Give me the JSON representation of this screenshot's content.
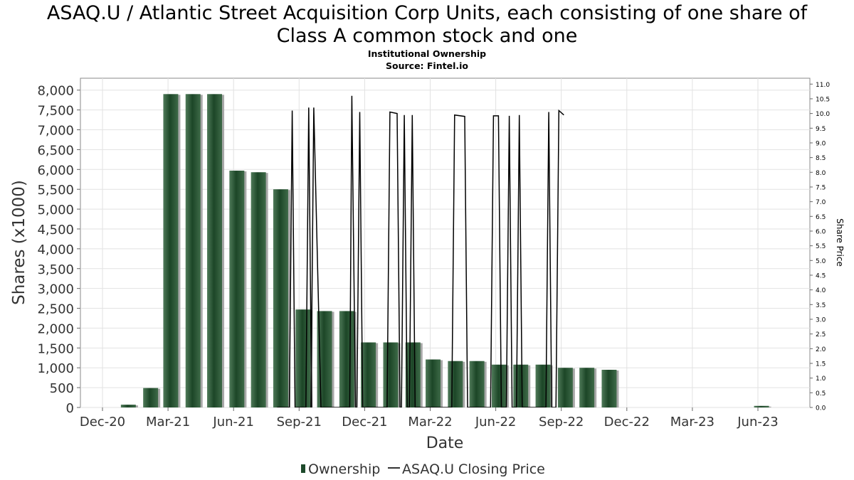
{
  "chart_data": {
    "type": "bar",
    "title_line1": "ASAQ.U / Atlantic Street Acquisition Corp Units, each consisting of one share of",
    "title_line2": "Class A common stock and one",
    "subtitle_line1": "Institutional Ownership",
    "subtitle_line2": "Source: Fintel.io",
    "xlabel": "Date",
    "ylabel": "Shares (x1000)",
    "y2label": "Share Price",
    "x_ticks": [
      "Dec-20",
      "Mar-21",
      "Jun-21",
      "Sep-21",
      "Dec-21",
      "Mar-22",
      "Jun-22",
      "Sep-22",
      "Dec-22",
      "Mar-23",
      "Jun-23"
    ],
    "ylim": [
      0,
      8300
    ],
    "y_ticks": [
      0,
      500,
      1000,
      1500,
      2000,
      2500,
      3000,
      3500,
      4000,
      4500,
      5000,
      5500,
      6000,
      6500,
      7000,
      7500,
      8000
    ],
    "y_tick_labels": [
      "0",
      "500",
      "1,000",
      "1,500",
      "2,000",
      "2,500",
      "3,000",
      "3,500",
      "4,000",
      "4,500",
      "5,000",
      "5,500",
      "6,000",
      "6,500",
      "7,000",
      "7,500",
      "8,000"
    ],
    "y2lim": [
      0,
      11.2
    ],
    "y2_ticks": [
      0.0,
      0.5,
      1.0,
      1.5,
      2.0,
      2.5,
      3.0,
      3.5,
      4.0,
      4.5,
      5.0,
      5.5,
      6.0,
      6.5,
      7.0,
      7.5,
      8.0,
      8.5,
      9.0,
      9.5,
      10.0,
      10.5,
      11.0
    ],
    "y2_tick_labels": [
      "0.0",
      "0.5",
      "1.0",
      "1.5",
      "2.0",
      "2.5",
      "3.0",
      "3.5",
      "4.0",
      "4.5",
      "5.0",
      "5.5",
      "6.0",
      "6.5",
      "7.0",
      "7.5",
      "8.0",
      "8.5",
      "9.0",
      "9.5",
      "10.0",
      "10.5",
      "11.0"
    ],
    "grid": true,
    "legend_position": "bottom",
    "series": [
      {
        "name": "Ownership",
        "color": "#1e4a2b",
        "values": [
          {
            "x": "2021-01-06",
            "y": 70
          },
          {
            "x": "2021-02-06",
            "y": 490
          },
          {
            "x": "2021-03-06",
            "y": 7900
          },
          {
            "x": "2021-04-06",
            "y": 7900
          },
          {
            "x": "2021-05-06",
            "y": 7900
          },
          {
            "x": "2021-06-06",
            "y": 5970
          },
          {
            "x": "2021-07-06",
            "y": 5930
          },
          {
            "x": "2021-08-06",
            "y": 5500
          },
          {
            "x": "2021-09-06",
            "y": 2470
          },
          {
            "x": "2021-10-06",
            "y": 2430
          },
          {
            "x": "2021-11-06",
            "y": 2430
          },
          {
            "x": "2021-12-06",
            "y": 1640
          },
          {
            "x": "2022-01-06",
            "y": 1640
          },
          {
            "x": "2022-02-06",
            "y": 1640
          },
          {
            "x": "2022-03-06",
            "y": 1210
          },
          {
            "x": "2022-04-06",
            "y": 1170
          },
          {
            "x": "2022-05-06",
            "y": 1170
          },
          {
            "x": "2022-06-06",
            "y": 1080
          },
          {
            "x": "2022-07-06",
            "y": 1080
          },
          {
            "x": "2022-08-06",
            "y": 1080
          },
          {
            "x": "2022-09-06",
            "y": 1000
          },
          {
            "x": "2022-10-06",
            "y": 1000
          },
          {
            "x": "2022-11-06",
            "y": 950
          },
          {
            "x": "2023-06-06",
            "y": 40
          }
        ]
      },
      {
        "name": "ASAQ.U Closing Price",
        "color": "#000000",
        "values": [
          {
            "x": "2021-08-01",
            "y": 0
          },
          {
            "x": "2021-08-18",
            "y": 0
          },
          {
            "x": "2021-08-22",
            "y": 10.1
          },
          {
            "x": "2021-08-26",
            "y": 0
          },
          {
            "x": "2021-09-10",
            "y": 0
          },
          {
            "x": "2021-09-14",
            "y": 10.2
          },
          {
            "x": "2021-09-18",
            "y": 0
          },
          {
            "x": "2021-09-17",
            "y": 0
          },
          {
            "x": "2021-09-21",
            "y": 10.2
          },
          {
            "x": "2021-10-01",
            "y": 0
          },
          {
            "x": "2021-11-10",
            "y": 0
          },
          {
            "x": "2021-11-13",
            "y": 10.6
          },
          {
            "x": "2021-11-18",
            "y": 0
          },
          {
            "x": "2021-11-20",
            "y": 0
          },
          {
            "x": "2021-11-24",
            "y": 10.05
          },
          {
            "x": "2021-11-28",
            "y": 0
          },
          {
            "x": "2022-01-01",
            "y": 0
          },
          {
            "x": "2022-01-05",
            "y": 10.05
          },
          {
            "x": "2022-01-15",
            "y": 10.0
          },
          {
            "x": "2022-01-19",
            "y": 0
          },
          {
            "x": "2022-01-21",
            "y": 0
          },
          {
            "x": "2022-01-25",
            "y": 9.95
          },
          {
            "x": "2022-01-29",
            "y": 0
          },
          {
            "x": "2022-02-01",
            "y": 0
          },
          {
            "x": "2022-02-05",
            "y": 9.95
          },
          {
            "x": "2022-02-09",
            "y": 0
          },
          {
            "x": "2022-04-01",
            "y": 0
          },
          {
            "x": "2022-04-05",
            "y": 9.95
          },
          {
            "x": "2022-04-19",
            "y": 9.9
          },
          {
            "x": "2022-04-23",
            "y": 0
          },
          {
            "x": "2022-05-25",
            "y": 0
          },
          {
            "x": "2022-05-29",
            "y": 9.92
          },
          {
            "x": "2022-06-05",
            "y": 9.92
          },
          {
            "x": "2022-06-09",
            "y": 0
          },
          {
            "x": "2022-06-16",
            "y": 0
          },
          {
            "x": "2022-06-20",
            "y": 9.92
          },
          {
            "x": "2022-06-24",
            "y": 0
          },
          {
            "x": "2022-06-30",
            "y": 0
          },
          {
            "x": "2022-07-04",
            "y": 9.95
          },
          {
            "x": "2022-07-08",
            "y": 0
          },
          {
            "x": "2022-08-10",
            "y": 0
          },
          {
            "x": "2022-08-14",
            "y": 10.05
          },
          {
            "x": "2022-08-18",
            "y": 0
          },
          {
            "x": "2022-08-24",
            "y": 0
          },
          {
            "x": "2022-08-28",
            "y": 10.1
          },
          {
            "x": "2022-09-04",
            "y": 9.95
          }
        ]
      }
    ]
  }
}
